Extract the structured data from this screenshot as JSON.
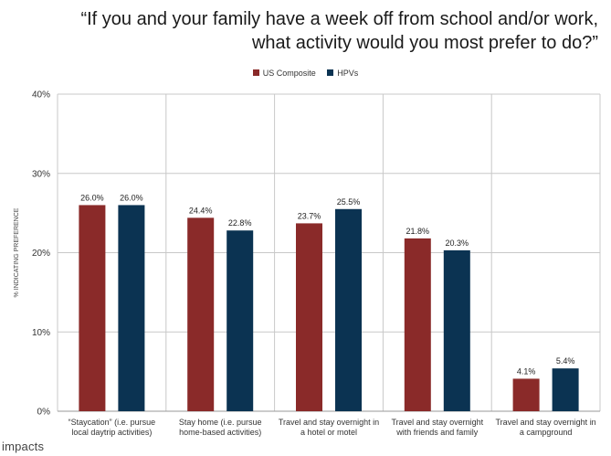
{
  "title_lines": [
    "“If you and your family have a week off from school and/or work,",
    "what activity would you most prefer to do?”"
  ],
  "logo_text": "impacts",
  "colors": {
    "us_composite": "#8a2a29",
    "hpvs": "#0b3352",
    "grid": "#c8c8c8",
    "axis": "#9a9a9a"
  },
  "chart_data": {
    "type": "bar",
    "title": "“If you and your family have a week off from school and/or work, what activity would you most prefer to do?”",
    "ylabel": "% INDICATING PREFERENCE",
    "ylim": [
      0,
      40
    ],
    "yticks": [
      0,
      10,
      20,
      30,
      40
    ],
    "ytick_labels": [
      "0%",
      "10%",
      "20%",
      "30%",
      "40%"
    ],
    "grid": true,
    "legend": "top-center",
    "categories": [
      [
        "“Staycation” (i.e. pursue",
        "local daytrip activities)"
      ],
      [
        "Stay home (i.e. pursue",
        "home-based activities)"
      ],
      [
        "Travel and stay overnight in",
        "a hotel or motel"
      ],
      [
        "Travel and stay overnight",
        "with friends and family"
      ],
      [
        "Travel and stay overnight in",
        "a campground"
      ]
    ],
    "series": [
      {
        "name": "US Composite",
        "values": [
          26.0,
          24.4,
          23.7,
          21.8,
          4.1
        ],
        "labels": [
          "26.0%",
          "24.4%",
          "23.7%",
          "21.8%",
          "4.1%"
        ]
      },
      {
        "name": "HPVs",
        "values": [
          26.0,
          22.8,
          25.5,
          20.3,
          5.4
        ],
        "labels": [
          "26.0%",
          "22.8%",
          "25.5%",
          "20.3%",
          "5.4%"
        ]
      }
    ]
  }
}
